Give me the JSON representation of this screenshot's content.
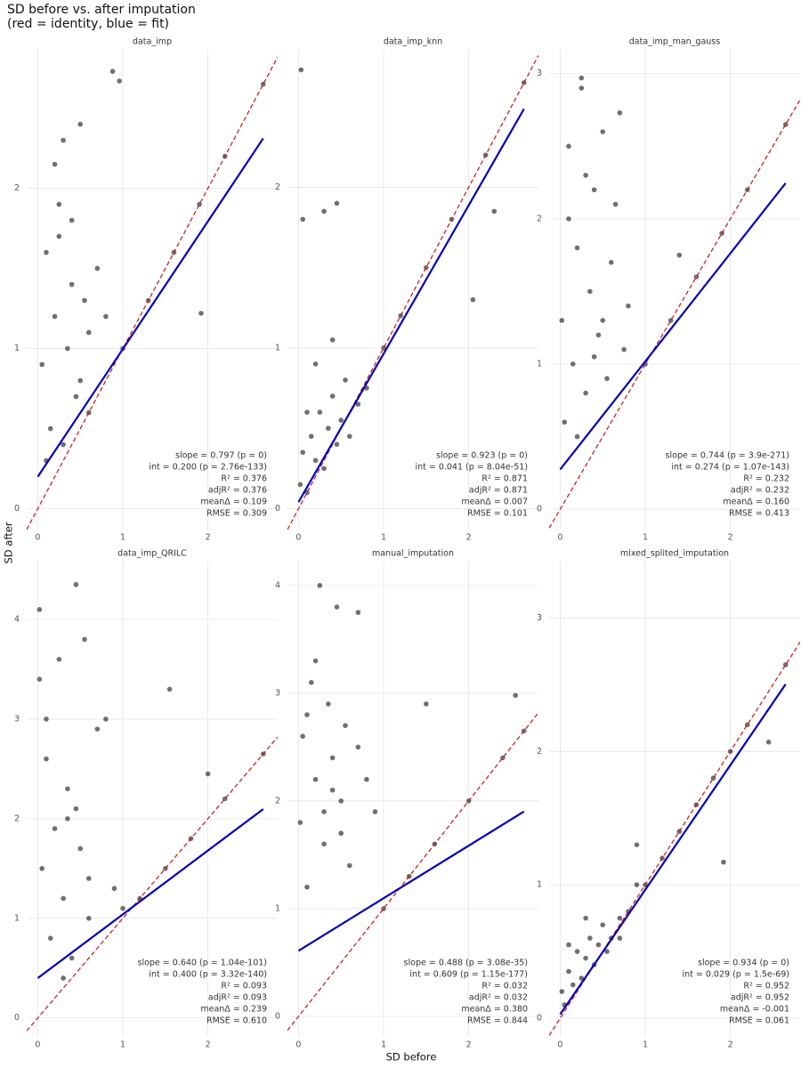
{
  "title": [
    "SD before vs. after imputation",
    "(red = identity, blue = fit)"
  ],
  "x_label": "SD before",
  "y_label": "SD after",
  "chart_data": [
    {
      "type": "scatter",
      "title": "data_imp",
      "color": "#333333",
      "x": [
        0.05,
        0.1,
        0.15,
        0.2,
        0.25,
        0.3,
        0.35,
        0.4,
        0.45,
        0.5,
        0.55,
        0.6,
        0.7,
        0.8,
        0.88,
        0.96,
        0.2,
        0.3,
        0.5,
        0.1,
        0.4,
        0.6,
        1.0,
        1.3,
        1.6,
        1.9,
        2.2,
        2.65,
        1.92,
        0.25
      ],
      "y": [
        0.9,
        1.6,
        0.5,
        1.2,
        1.9,
        2.3,
        1.0,
        1.4,
        0.7,
        2.4,
        1.3,
        1.1,
        1.5,
        1.2,
        2.73,
        2.67,
        2.15,
        0.4,
        0.8,
        0.3,
        1.8,
        0.6,
        1.0,
        1.3,
        1.6,
        1.9,
        2.2,
        2.65,
        1.22,
        1.7
      ],
      "fit": {
        "color": "#0000c0",
        "x": [
          0,
          2.65
        ],
        "values": [
          0.2,
          2.312
        ]
      },
      "identity_color": "#cc1111",
      "annotation": [
        "slope = 0.797 (p = 0)",
        "int = 0.200 (p = 2.76e-133)",
        "R² = 0.376",
        "adjR² = 0.376",
        "meanΔ = 0.109",
        "RMSE = 0.309"
      ],
      "xlim": [
        -0.13,
        2.82
      ],
      "ylim": [
        -0.13,
        2.87
      ],
      "xticks": [
        0,
        1,
        2
      ],
      "yticks": [
        0,
        1,
        2
      ],
      "grid": true
    },
    {
      "type": "scatter",
      "title": "data_imp_knn",
      "color": "#333333",
      "x": [
        0.02,
        0.05,
        0.1,
        0.15,
        0.2,
        0.25,
        0.3,
        0.35,
        0.4,
        0.45,
        0.5,
        0.55,
        0.6,
        0.7,
        0.8,
        1.0,
        1.2,
        1.5,
        1.8,
        2.2,
        2.65,
        0.03,
        0.05,
        0.3,
        0.45,
        0.2,
        2.05,
        2.3,
        0.1,
        0.4
      ],
      "y": [
        0.15,
        0.35,
        0.1,
        0.45,
        0.3,
        0.6,
        0.25,
        0.5,
        0.7,
        0.4,
        0.55,
        0.8,
        0.45,
        0.65,
        0.75,
        1.0,
        1.2,
        1.5,
        1.8,
        2.2,
        2.65,
        2.73,
        1.8,
        1.85,
        1.9,
        0.9,
        1.3,
        1.85,
        0.6,
        1.05
      ],
      "fit": {
        "color": "#0000c0",
        "x": [
          0,
          2.65
        ],
        "values": [
          0.041,
          2.487
        ]
      },
      "identity_color": "#cc1111",
      "annotation": [
        "slope = 0.923 (p = 0)",
        "int = 0.041 (p = 8.04e-51)",
        "R² = 0.871",
        "adjR² = 0.871",
        "meanΔ = 0.007",
        "RMSE = 0.101"
      ],
      "xlim": [
        -0.13,
        2.82
      ],
      "ylim": [
        -0.13,
        2.86
      ],
      "xticks": [
        0,
        1,
        2
      ],
      "yticks": [
        0,
        1,
        2
      ],
      "grid": true
    },
    {
      "type": "scatter",
      "title": "data_imp_man_gauss",
      "color": "#333333",
      "x": [
        0.02,
        0.05,
        0.1,
        0.15,
        0.2,
        0.25,
        0.3,
        0.35,
        0.4,
        0.45,
        0.5,
        0.55,
        0.6,
        0.7,
        0.75,
        0.8,
        0.1,
        0.3,
        0.2,
        0.5,
        1.0,
        1.3,
        1.6,
        1.9,
        2.2,
        2.65,
        0.65,
        0.4,
        0.25,
        1.4
      ],
      "y": [
        1.3,
        0.6,
        2.5,
        1.0,
        1.8,
        2.97,
        0.8,
        1.5,
        2.2,
        1.2,
        2.6,
        0.9,
        1.7,
        2.73,
        1.1,
        1.4,
        2.0,
        2.3,
        0.5,
        1.3,
        1.0,
        1.3,
        1.6,
        1.9,
        2.2,
        2.65,
        2.1,
        1.05,
        2.9,
        1.75
      ],
      "fit": {
        "color": "#0000c0",
        "x": [
          0,
          2.65
        ],
        "values": [
          0.274,
          2.246
        ]
      },
      "identity_color": "#cc1111",
      "annotation": [
        "slope = 0.744 (p = 3.9e-271)",
        "int = 0.274 (p = 1.07e-143)",
        "R² = 0.232",
        "adjR² = 0.232",
        "meanΔ = 0.160",
        "RMSE = 0.413"
      ],
      "xlim": [
        -0.13,
        2.82
      ],
      "ylim": [
        -0.14,
        3.17
      ],
      "xticks": [
        0,
        1,
        2
      ],
      "yticks": [
        0,
        1,
        2,
        3
      ],
      "grid": true
    },
    {
      "type": "scatter",
      "title": "data_imp_QRILC",
      "color": "#333333",
      "x": [
        0.02,
        0.05,
        0.1,
        0.15,
        0.2,
        0.25,
        0.3,
        0.35,
        0.4,
        0.45,
        0.5,
        0.55,
        0.6,
        0.7,
        0.8,
        0.9,
        1.0,
        0.45,
        0.3,
        0.1,
        1.2,
        1.5,
        1.8,
        2.2,
        2.65,
        1.55,
        2.0,
        0.6,
        0.02,
        0.35
      ],
      "y": [
        4.1,
        1.5,
        2.6,
        0.8,
        1.9,
        3.6,
        1.2,
        2.3,
        0.6,
        4.35,
        1.7,
        3.8,
        1.0,
        2.9,
        3.0,
        1.3,
        1.1,
        2.1,
        0.4,
        3.0,
        1.2,
        1.5,
        1.8,
        2.2,
        2.65,
        3.3,
        2.45,
        1.4,
        3.4,
        2.0
      ],
      "fit": {
        "color": "#0000c0",
        "x": [
          0,
          2.65
        ],
        "values": [
          0.4,
          2.096
        ]
      },
      "identity_color": "#cc1111",
      "annotation": [
        "slope = 0.640 (p = 1.04e-101)",
        "int = 0.400 (p = 3.32e-140)",
        "R² = 0.093",
        "adjR² = 0.093",
        "meanΔ = 0.239",
        "RMSE = 0.610"
      ],
      "xlim": [
        -0.13,
        2.82
      ],
      "ylim": [
        -0.19,
        4.59
      ],
      "xticks": [
        0,
        1,
        2
      ],
      "yticks": [
        0,
        1,
        2,
        3,
        4
      ],
      "grid": true
    },
    {
      "type": "scatter",
      "title": "manual_imputation",
      "color": "#333333",
      "x": [
        0.02,
        0.05,
        0.1,
        0.15,
        0.2,
        0.25,
        0.3,
        0.35,
        0.4,
        0.45,
        0.5,
        0.55,
        0.6,
        0.7,
        0.8,
        0.9,
        1.0,
        1.3,
        1.6,
        2.0,
        2.4,
        2.65,
        0.2,
        0.5,
        1.5,
        2.55,
        0.4,
        0.1,
        0.3,
        0.7
      ],
      "y": [
        1.8,
        2.6,
        1.2,
        3.1,
        2.2,
        4.0,
        1.6,
        2.9,
        2.4,
        3.8,
        2.0,
        2.7,
        1.4,
        2.5,
        2.2,
        1.9,
        1.0,
        1.3,
        1.6,
        2.0,
        2.4,
        2.65,
        3.3,
        1.7,
        2.9,
        2.98,
        2.1,
        2.8,
        1.9,
        3.75
      ],
      "fit": {
        "color": "#0000c0",
        "x": [
          0,
          2.65
        ],
        "values": [
          0.609,
          1.902
        ]
      },
      "identity_color": "#cc1111",
      "annotation": [
        "slope = 0.488 (p = 3.08e-35)",
        "int = 0.609 (p = 1.15e-177)",
        "R² = 0.032",
        "adjR² = 0.032",
        "meanΔ = 0.380",
        "RMSE = 0.844"
      ],
      "xlim": [
        -0.13,
        2.82
      ],
      "ylim": [
        -0.19,
        4.23
      ],
      "xticks": [
        0,
        1,
        2
      ],
      "yticks": [
        0,
        1,
        2,
        3,
        4
      ],
      "grid": true
    },
    {
      "type": "scatter",
      "title": "mixed_splited_imputation",
      "color": "#333333",
      "x": [
        0.02,
        0.05,
        0.1,
        0.15,
        0.2,
        0.25,
        0.3,
        0.35,
        0.4,
        0.45,
        0.5,
        0.55,
        0.6,
        0.7,
        0.8,
        0.9,
        1.0,
        1.2,
        1.4,
        1.6,
        1.8,
        2.0,
        2.2,
        2.65,
        1.92,
        2.45,
        0.1,
        0.3,
        0.7,
        0.9
      ],
      "y": [
        0.2,
        0.1,
        0.35,
        0.25,
        0.5,
        0.3,
        0.45,
        0.6,
        0.4,
        0.55,
        0.7,
        0.5,
        0.6,
        0.75,
        0.8,
        1.3,
        1.0,
        1.2,
        1.4,
        1.6,
        1.8,
        2.0,
        2.2,
        2.65,
        1.17,
        2.07,
        0.55,
        0.75,
        0.6,
        1.0
      ],
      "fit": {
        "color": "#0000c0",
        "x": [
          0,
          2.65
        ],
        "values": [
          0.029,
          2.504
        ]
      },
      "identity_color": "#cc1111",
      "annotation": [
        "slope = 0.934 (p = 0)",
        "int = 0.029 (p = 1.5e-69)",
        "R² = 0.952",
        "adjR² = 0.952",
        "meanΔ = -0.001",
        "RMSE = 0.061"
      ],
      "xlim": [
        -0.13,
        2.82
      ],
      "ylim": [
        -0.14,
        3.43
      ],
      "xticks": [
        0,
        1,
        2
      ],
      "yticks": [
        0,
        1,
        2,
        3
      ],
      "grid": true
    }
  ]
}
